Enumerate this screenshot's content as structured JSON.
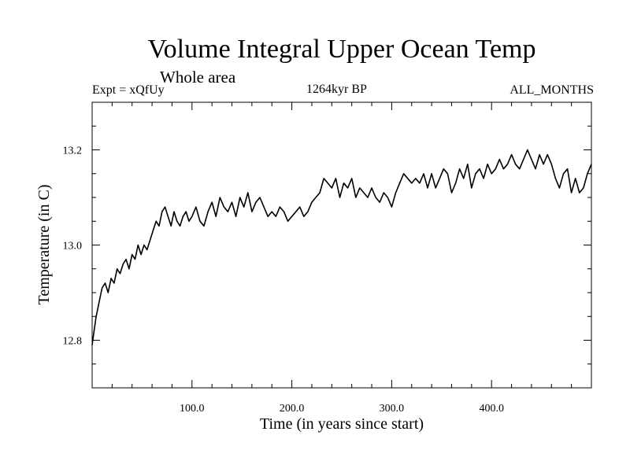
{
  "header": {
    "title": "Volume Integral Upper Ocean Temp",
    "subtitle": "Whole area",
    "expt": "Expt = xQfUy",
    "period": "1264kyr BP",
    "months": "ALL_MONTHS"
  },
  "chart_data": {
    "type": "line",
    "title": "Volume Integral Upper Ocean Temp",
    "subtitle": "Whole area",
    "xlabel": "Time (in years since start)",
    "ylabel": "Temperature (in C)",
    "xlim": [
      0,
      500
    ],
    "ylim": [
      12.7,
      13.3
    ],
    "x_ticks": [
      100,
      200,
      300,
      400
    ],
    "x_tick_labels": [
      "100.0",
      "200.0",
      "300.0",
      "400.0"
    ],
    "y_ticks": [
      12.8,
      13.0,
      13.2
    ],
    "y_tick_labels": [
      "12.8",
      "13.0",
      "13.2"
    ],
    "grid": false,
    "series": [
      {
        "name": "Volume Integral Upper Ocean Temp",
        "color": "#000000",
        "x": [
          0,
          2,
          4,
          6,
          8,
          10,
          13,
          16,
          19,
          22,
          25,
          28,
          31,
          34,
          37,
          40,
          43,
          46,
          49,
          52,
          55,
          58,
          61,
          64,
          67,
          70,
          73,
          76,
          79,
          82,
          85,
          88,
          91,
          94,
          97,
          100,
          104,
          108,
          112,
          116,
          120,
          124,
          128,
          132,
          136,
          140,
          144,
          148,
          152,
          156,
          160,
          164,
          168,
          172,
          176,
          180,
          184,
          188,
          192,
          196,
          200,
          204,
          208,
          212,
          216,
          220,
          224,
          228,
          232,
          236,
          240,
          244,
          248,
          252,
          256,
          260,
          264,
          268,
          272,
          276,
          280,
          284,
          288,
          292,
          296,
          300,
          304,
          308,
          312,
          316,
          320,
          324,
          328,
          332,
          336,
          340,
          344,
          348,
          352,
          356,
          360,
          364,
          368,
          372,
          376,
          380,
          384,
          388,
          392,
          396,
          400,
          404,
          408,
          412,
          416,
          420,
          424,
          428,
          432,
          436,
          440,
          444,
          448,
          452,
          456,
          460,
          464,
          468,
          472,
          476,
          480,
          484,
          488,
          492,
          496,
          500
        ],
        "y": [
          12.79,
          12.82,
          12.85,
          12.87,
          12.89,
          12.91,
          12.92,
          12.9,
          12.93,
          12.92,
          12.95,
          12.94,
          12.96,
          12.97,
          12.95,
          12.98,
          12.97,
          13.0,
          12.98,
          13.0,
          12.99,
          13.01,
          13.03,
          13.05,
          13.04,
          13.07,
          13.08,
          13.06,
          13.04,
          13.07,
          13.05,
          13.04,
          13.06,
          13.07,
          13.05,
          13.06,
          13.08,
          13.05,
          13.04,
          13.07,
          13.09,
          13.06,
          13.1,
          13.08,
          13.07,
          13.09,
          13.06,
          13.1,
          13.08,
          13.11,
          13.07,
          13.09,
          13.1,
          13.08,
          13.06,
          13.07,
          13.06,
          13.08,
          13.07,
          13.05,
          13.06,
          13.07,
          13.08,
          13.06,
          13.07,
          13.09,
          13.1,
          13.11,
          13.14,
          13.13,
          13.12,
          13.14,
          13.1,
          13.13,
          13.12,
          13.14,
          13.1,
          13.12,
          13.11,
          13.1,
          13.12,
          13.1,
          13.09,
          13.11,
          13.1,
          13.08,
          13.11,
          13.13,
          13.15,
          13.14,
          13.13,
          13.14,
          13.13,
          13.15,
          13.12,
          13.15,
          13.12,
          13.14,
          13.16,
          13.15,
          13.11,
          13.13,
          13.16,
          13.14,
          13.17,
          13.12,
          13.15,
          13.16,
          13.14,
          13.17,
          13.15,
          13.16,
          13.18,
          13.16,
          13.17,
          13.19,
          13.17,
          13.16,
          13.18,
          13.2,
          13.18,
          13.16,
          13.19,
          13.17,
          13.19,
          13.17,
          13.14,
          13.12,
          13.15,
          13.16,
          13.11,
          13.14,
          13.11,
          13.12,
          13.15,
          13.17
        ]
      }
    ]
  }
}
